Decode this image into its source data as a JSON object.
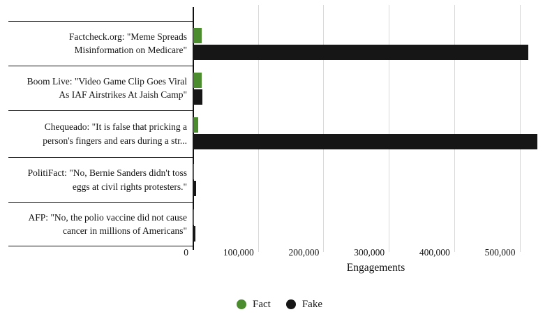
{
  "chart_data": {
    "type": "bar",
    "orientation": "horizontal",
    "title": "",
    "xlabel": "Engagements",
    "categories": [
      "Factcheck.org: \"Meme Spreads Misinformation on Medicare\"",
      "Boom Live: \"Video Game Clip Goes Viral As IAF Airstrikes At Jaish Camp\"",
      "Chequeado: \"It is false that pricking a person's fingers and ears during a str...",
      "PolitiFact: \"No, Bernie Sanders didn't toss eggs at civil rights protesters.\"",
      "AFP: \"No, the polio vaccine did not cause cancer in millions of Americans\""
    ],
    "category_label_lines": [
      [
        "Factcheck.org: \"Meme Spreads",
        "Misinformation on Medicare\""
      ],
      [
        "Boom Live: \"Video Game Clip Goes Viral",
        "As IAF Airstrikes At Jaish Camp\""
      ],
      [
        "Chequeado: \"It is false that pricking a",
        "person's fingers and ears during a str..."
      ],
      [
        "PolitiFact: \"No, Bernie Sanders didn't toss",
        "eggs at civil rights protesters.\""
      ],
      [
        "AFP: \"No, the polio vaccine did not cause",
        "cancer in millions of Americans\""
      ]
    ],
    "series": [
      {
        "name": "Fact",
        "color": "#4a8c2e",
        "values": [
          13000,
          12500,
          7000,
          400,
          400
        ]
      },
      {
        "name": "Fake",
        "color": "#161616",
        "values": [
          512000,
          14000,
          526000,
          4000,
          3500
        ]
      }
    ],
    "x_ticks": {
      "labels": [
        "0",
        "100,000",
        "200,000",
        "300,000",
        "400,000",
        "500,000"
      ],
      "values": [
        0,
        100000,
        200000,
        300000,
        400000,
        500000
      ]
    },
    "xlim": [
      0,
      560000
    ],
    "grid": "vertical",
    "legend_position": "bottom-center",
    "legend": [
      {
        "label": "Fact",
        "color": "#4a8c2e"
      },
      {
        "label": "Fake",
        "color": "#161616"
      }
    ]
  },
  "colors": {
    "fact": "#4a8c2e",
    "fake": "#161616",
    "gridline": "#d8d8d8",
    "axis": "#111111",
    "text": "#141414",
    "background": "#ffffff"
  }
}
